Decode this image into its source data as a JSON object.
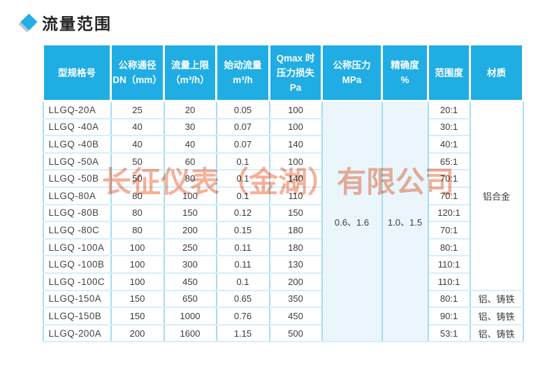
{
  "page": {
    "title": "流量范围"
  },
  "watermark": {
    "text": "长征仪表（金湖）有限公司",
    "color": "#f0805a"
  },
  "colors": {
    "header_bg": "#1fade4",
    "grid_vertical": "#a8dcf2",
    "grid_horizontal": "#d7eefa",
    "title_diamond": "#23aee6",
    "watermark": "#f0805a"
  },
  "table": {
    "headers": [
      {
        "id": "model",
        "lines": [
          "型规格号"
        ]
      },
      {
        "id": "dn",
        "lines": [
          "公称通径",
          "DN（mm）"
        ]
      },
      {
        "id": "flow_max",
        "lines": [
          "流量上限",
          "（m³/h）"
        ]
      },
      {
        "id": "flow_start",
        "lines": [
          "始动流量",
          "m³/h"
        ]
      },
      {
        "id": "pressure_loss",
        "lines": [
          "Qmax 时",
          "压力损失",
          "Pa"
        ]
      },
      {
        "id": "nominal_pressure",
        "lines": [
          "公称压力",
          "MPa"
        ]
      },
      {
        "id": "accuracy",
        "lines": [
          "精确度",
          "%"
        ]
      },
      {
        "id": "range",
        "lines": [
          "范围度"
        ]
      },
      {
        "id": "material",
        "lines": [
          "材质"
        ]
      }
    ],
    "merged": {
      "nominal_pressure": "0.6、1.6",
      "accuracy": "1.0、1.5",
      "material_top": "铝合金"
    },
    "rows": [
      {
        "model": "LLGQ-20A",
        "dn": "25",
        "flow_max": "20",
        "flow_start": "0.05",
        "pressure_loss": "100",
        "range": "20:1",
        "material": ""
      },
      {
        "model": "LLGQ -40A",
        "dn": "40",
        "flow_max": "30",
        "flow_start": "0.07",
        "pressure_loss": "100",
        "range": "30:1",
        "material": ""
      },
      {
        "model": "LLGQ -40B",
        "dn": "40",
        "flow_max": "40",
        "flow_start": "0.07",
        "pressure_loss": "140",
        "range": "40:1",
        "material": ""
      },
      {
        "model": "LLGQ -50A",
        "dn": "50",
        "flow_max": "60",
        "flow_start": "0.1",
        "pressure_loss": "100",
        "range": "65:1",
        "material": ""
      },
      {
        "model": "LLGQ -50B",
        "dn": "50",
        "flow_max": "80",
        "flow_start": "0.1",
        "pressure_loss": "140",
        "range": "70:1",
        "material": ""
      },
      {
        "model": "LLGQ-80A",
        "dn": "80",
        "flow_max": "100",
        "flow_start": "0.1",
        "pressure_loss": "110",
        "range": "70:1",
        "material": ""
      },
      {
        "model": "LLGQ -80B",
        "dn": "80",
        "flow_max": "150",
        "flow_start": "0.12",
        "pressure_loss": "150",
        "range": "120:1",
        "material": ""
      },
      {
        "model": "LLGQ -80C",
        "dn": "80",
        "flow_max": "200",
        "flow_start": "0.15",
        "pressure_loss": "180",
        "range": "70:1",
        "material": ""
      },
      {
        "model": "LLGQ -100A",
        "dn": "100",
        "flow_max": "250",
        "flow_start": "0.11",
        "pressure_loss": "180",
        "range": "80:1",
        "material": ""
      },
      {
        "model": "LLGQ -100B",
        "dn": "100",
        "flow_max": "300",
        "flow_start": "0.11",
        "pressure_loss": "130",
        "range": "110:1",
        "material": ""
      },
      {
        "model": "LLGQ -100C",
        "dn": "100",
        "flow_max": "450",
        "flow_start": "0.1",
        "pressure_loss": "200",
        "range": "110:1",
        "material": ""
      },
      {
        "model": "LLGQ-150A",
        "dn": "150",
        "flow_max": "650",
        "flow_start": "0.65",
        "pressure_loss": "350",
        "range": "80:1",
        "material": "铝、铸铁"
      },
      {
        "model": "LLGQ-150B",
        "dn": "150",
        "flow_max": "1000",
        "flow_start": "0.76",
        "pressure_loss": "450",
        "range": "90:1",
        "material": "铝、铸铁"
      },
      {
        "model": "LLGQ-200A",
        "dn": "200",
        "flow_max": "1600",
        "flow_start": "1.15",
        "pressure_loss": "500",
        "range": "53:1",
        "material": "铝、铸铁"
      }
    ]
  }
}
